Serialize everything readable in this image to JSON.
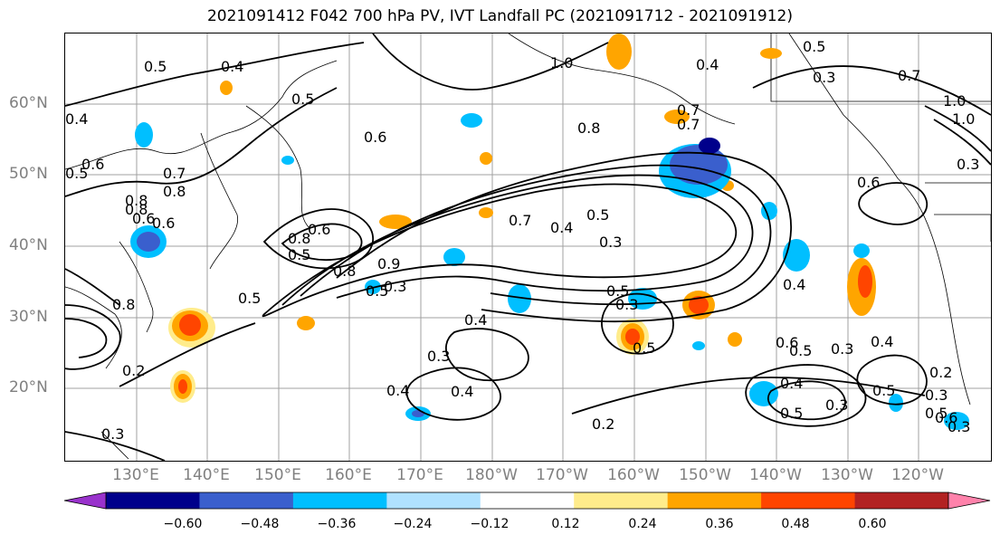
{
  "title": "2021091412 F042 700 hPa PV, IVT Landfall PC (2021091712 - 2021091912)",
  "lat_labels": [
    "60°N",
    "50°N",
    "40°N",
    "30°N",
    "20°N"
  ],
  "lon_labels": [
    "130°E",
    "140°E",
    "150°E",
    "160°E",
    "170°E",
    "180°W",
    "170°W",
    "160°W",
    "150°W",
    "140°W",
    "130°W",
    "120°W"
  ],
  "contour_labels": [
    "0.4",
    "0.5",
    "0.8",
    "0.7",
    "0.6",
    "0.5",
    "0.8",
    "0.6",
    "0.5",
    "0.8",
    "0.5",
    "0.9",
    "0.7",
    "0.4",
    "0.5",
    "0.3",
    "0.4",
    "0.4",
    "0.3",
    "0.4",
    "0.2",
    "0.2",
    "0.3",
    "0.6",
    "0.5",
    "0.3",
    "0.4",
    "0.4",
    "0.3",
    "0.5",
    "0.5",
    "0.6",
    "0.5",
    "0.3",
    "1.0",
    "0.4",
    "0.8",
    "0.7",
    "0.5",
    "0.3",
    "0.7",
    "1.0",
    "0.3",
    "0.6",
    "0.5",
    "0.6",
    "0.4",
    "0.2",
    "0.3",
    "0.5",
    "0.8",
    "0.4",
    "1.0",
    "0.6",
    "0.8",
    "0.6",
    "0.3",
    "0.5",
    "0.7",
    "0.8",
    "0.5",
    "0.3"
  ],
  "colorbar": {
    "ticks": [
      "−0.60",
      "−0.48",
      "−0.36",
      "−0.24",
      "−0.12",
      "0.12",
      "0.24",
      "0.36",
      "0.48",
      "0.60"
    ],
    "colors": [
      "#9932CC",
      "#00008B",
      "#3A5FCD",
      "#00BFFF",
      "#B0E2FF",
      "#FFFFFF",
      "#FFEC8B",
      "#FFA500",
      "#FF4500",
      "#B22222",
      "#FF82AB"
    ]
  },
  "colors": {
    "neg_strong": "#3A5FCD",
    "neg_mid": "#00BFFF",
    "neg_weak": "#B0E2FF",
    "pos_weak": "#FFEC8B",
    "pos_mid": "#FFA500",
    "pos_strong": "#FF4500",
    "contour": "#000000",
    "grid": "#a0a0a0",
    "axis_label": "#808080"
  }
}
